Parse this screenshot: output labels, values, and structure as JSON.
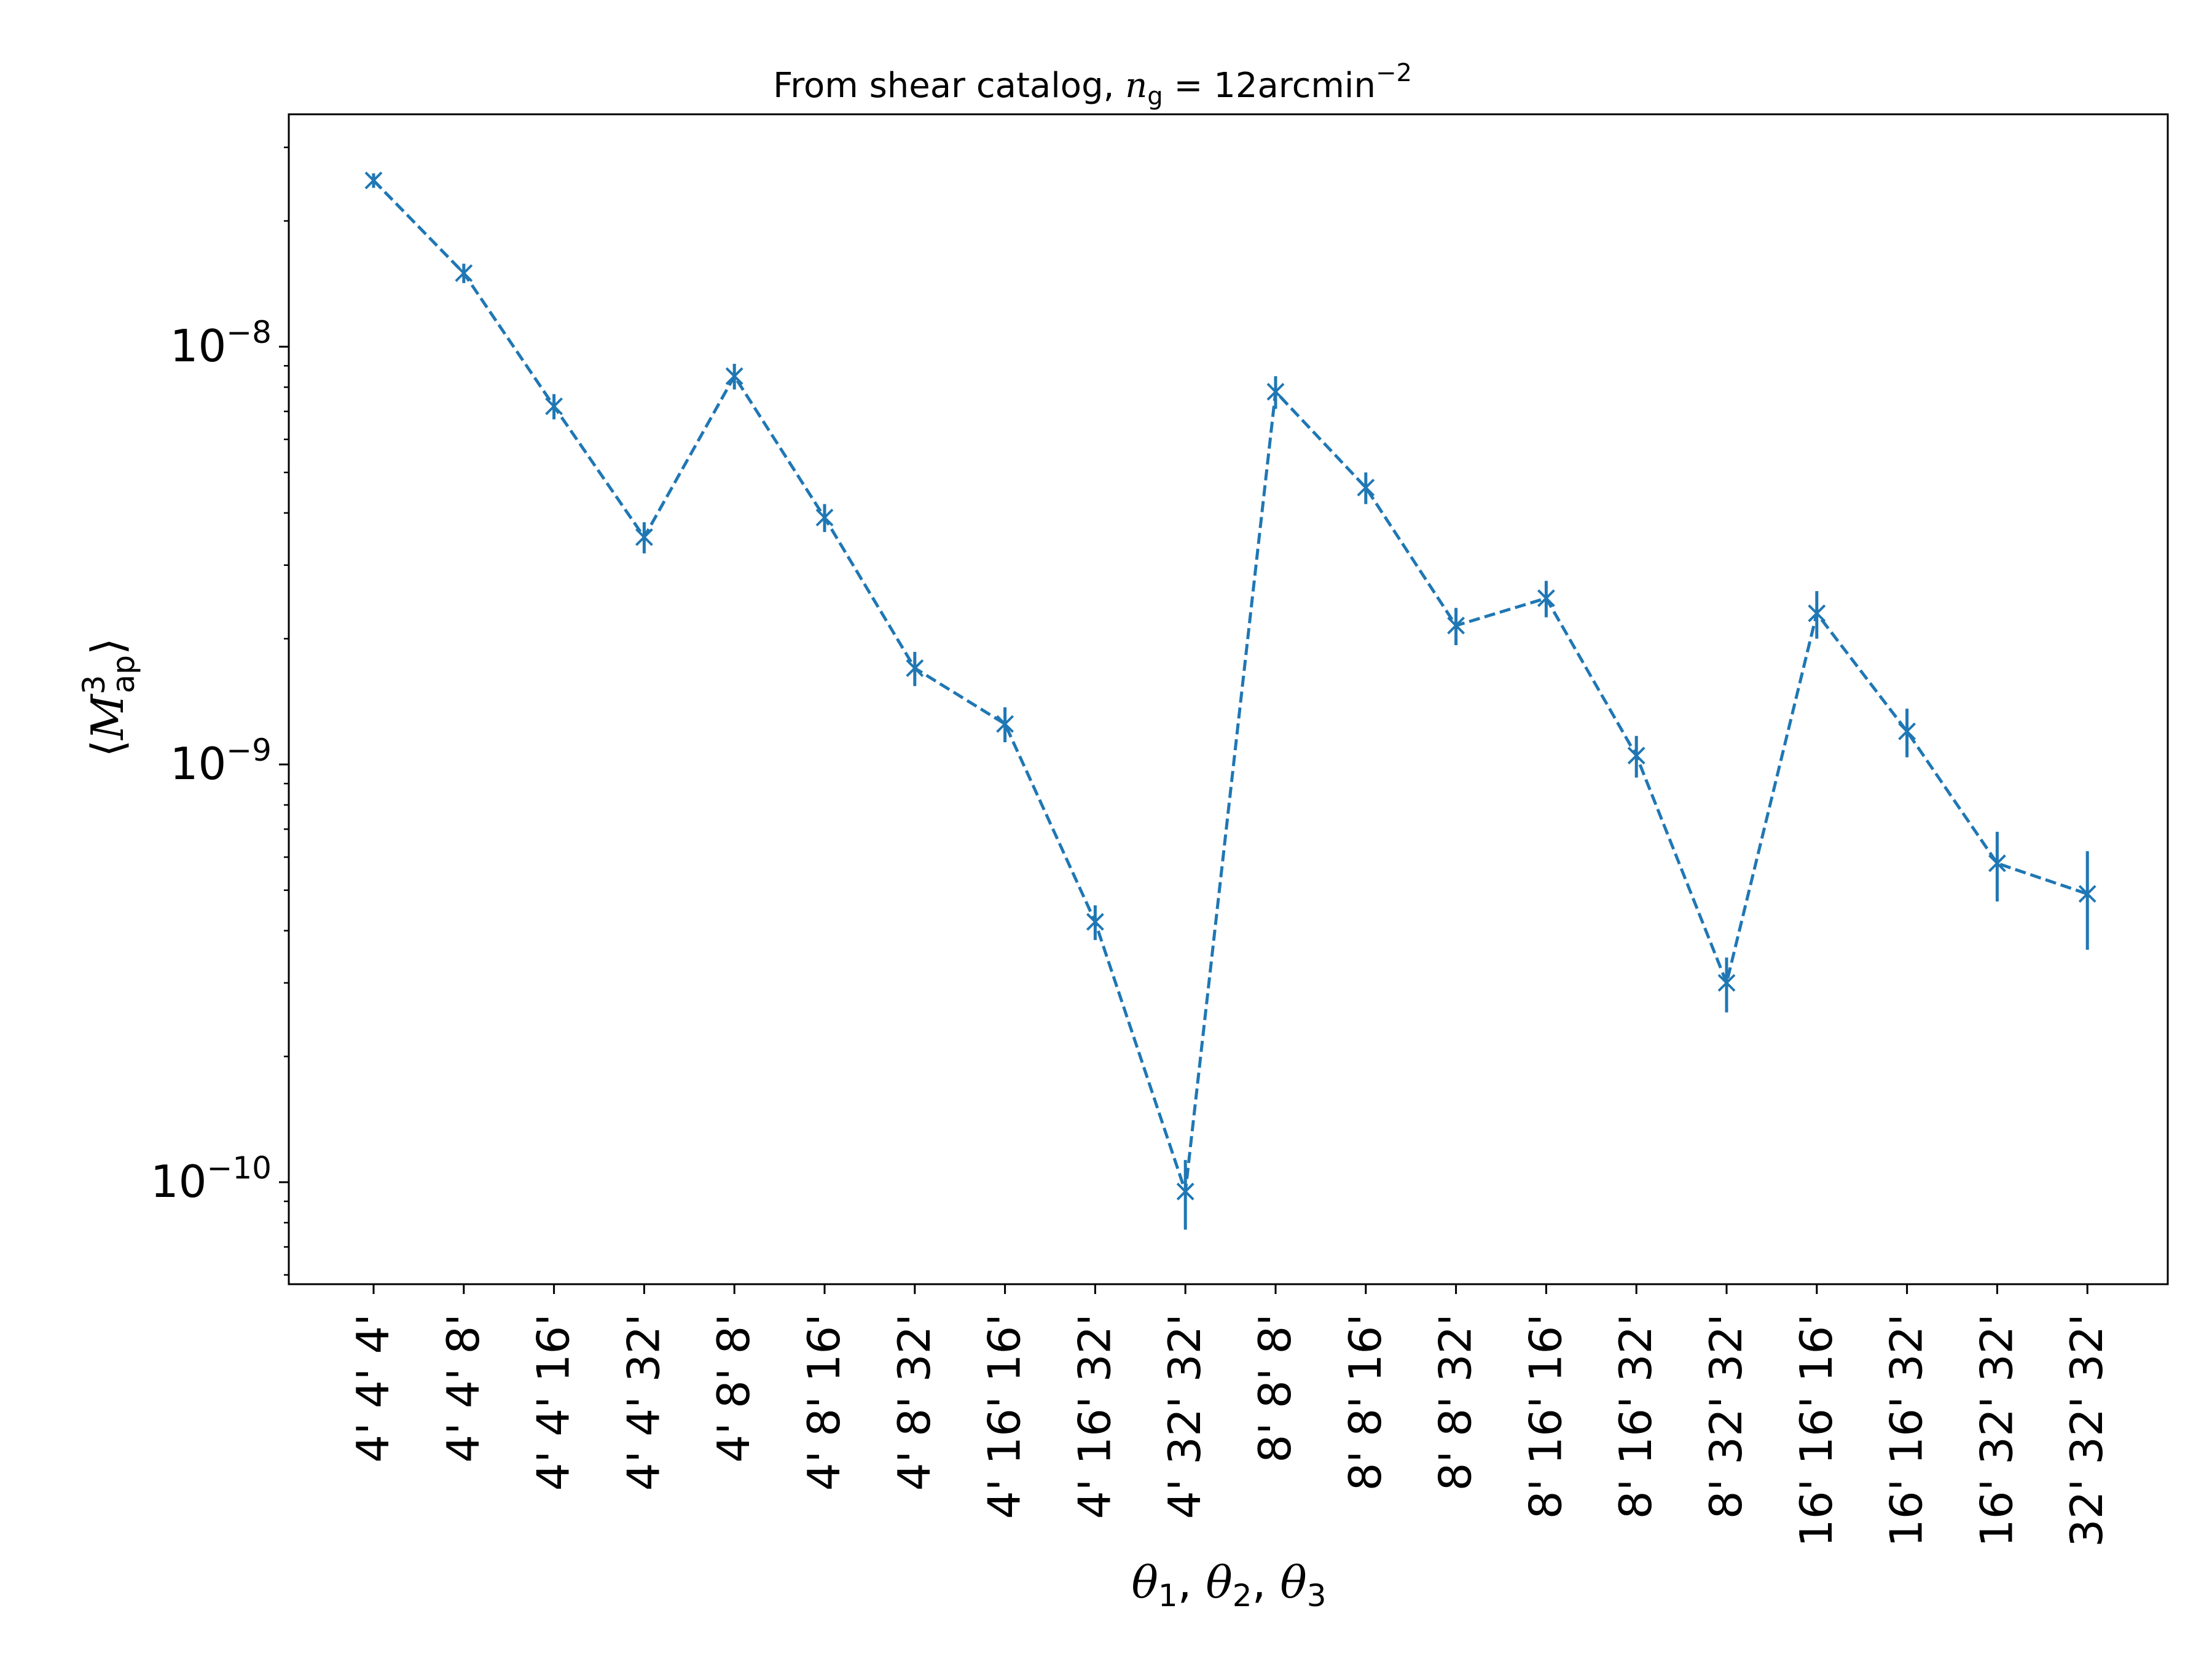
{
  "chart_data": {
    "type": "line",
    "title": "From shear catalog, n_g = 12arcmin^-2",
    "title_parts": {
      "prefix": "From shear catalog, ",
      "symbol": "n",
      "symbol_sub": "g",
      "equals": " = 12arcmin",
      "exponent": "−2"
    },
    "xlabel": "θ1, θ2, θ3",
    "xlabel_parts": {
      "a": "θ",
      "a_sub": "1",
      "b": "θ",
      "b_sub": "2",
      "c": "θ",
      "c_sub": "3",
      "sep": ", "
    },
    "ylabel": "⟨M_ap^3⟩",
    "ylabel_parts": {
      "open": "⟨",
      "symbol": "M",
      "sup": "3",
      "sub": "ap",
      "close": "⟩"
    },
    "y_scale": "log",
    "ylim": [
      5.7e-11,
      3.6e-08
    ],
    "y_ticks": [
      {
        "value": 1e-08,
        "base": "10",
        "exp": "−8"
      },
      {
        "value": 1e-09,
        "base": "10",
        "exp": "−9"
      },
      {
        "value": 1e-10,
        "base": "10",
        "exp": "−10"
      }
    ],
    "grid": false,
    "legend": "none",
    "color": "#1f77b4",
    "line_style": "dashed",
    "marker": "x",
    "categories": [
      "4' 4' 4'",
      "4' 4' 8'",
      "4' 4' 16'",
      "4' 4' 32'",
      "4' 8' 8'",
      "4' 8' 16'",
      "4' 8' 32'",
      "4' 16' 16'",
      "4' 16' 32'",
      "4' 32' 32'",
      "8' 8' 8'",
      "8' 8' 16'",
      "8' 8' 32'",
      "8' 16' 16'",
      "8' 16' 32'",
      "8' 32' 32'",
      "16' 16' 16'",
      "16' 16' 32'",
      "16' 32' 32'",
      "32' 32' 32'"
    ],
    "values": [
      2.5e-08,
      1.5e-08,
      7.2e-09,
      3.5e-09,
      8.5e-09,
      3.9e-09,
      1.7e-09,
      1.25e-09,
      4.2e-10,
      9.5e-11,
      7.8e-09,
      4.6e-09,
      2.15e-09,
      2.5e-09,
      1.05e-09,
      3e-10,
      2.3e-09,
      1.2e-09,
      5.8e-10,
      4.9e-10
    ],
    "errors": [
      1e-09,
      8e-10,
      5e-10,
      3e-10,
      6e-10,
      3e-10,
      1.6e-10,
      1.2e-10,
      4e-11,
      1.8e-11,
      7e-10,
      4e-10,
      2.2e-10,
      2.5e-10,
      1.2e-10,
      4.5e-11,
      3e-10,
      1.6e-10,
      1.1e-10,
      1.3e-10
    ]
  }
}
